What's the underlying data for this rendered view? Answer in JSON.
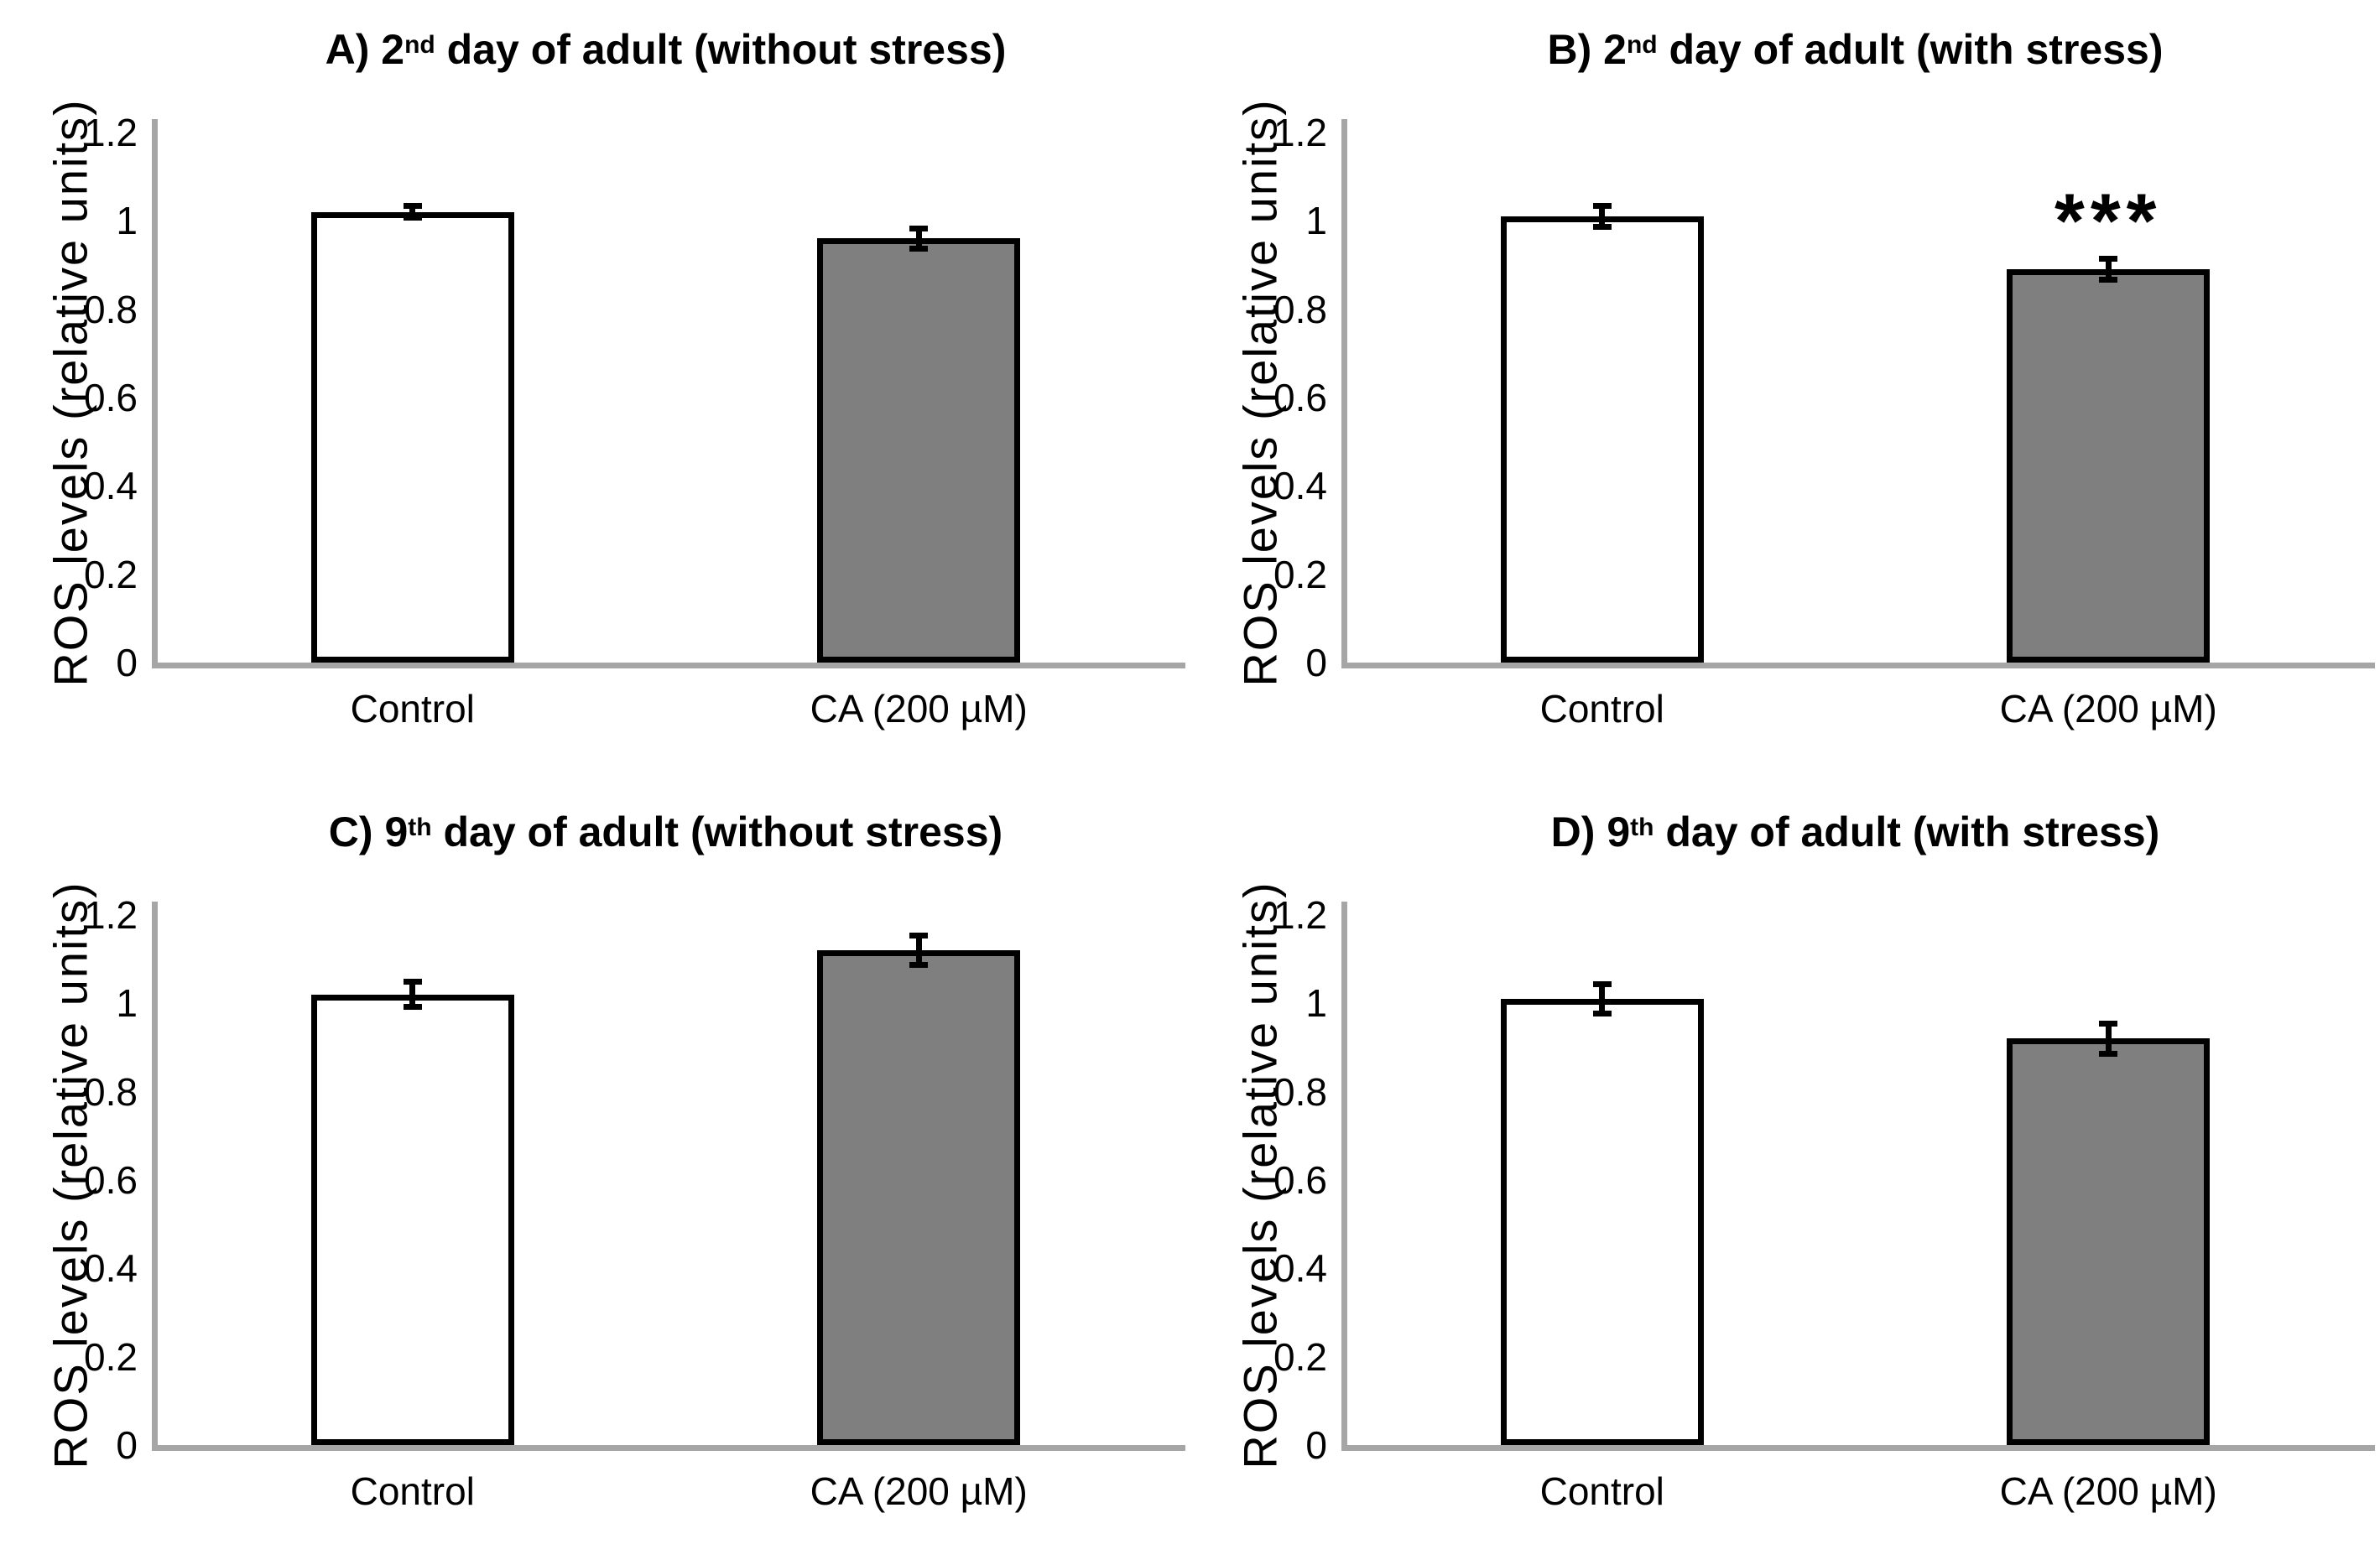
{
  "figure": {
    "ylabel": "ROS levels (relative units)",
    "yticks": [
      {
        "label": "0",
        "value": 0
      },
      {
        "label": "0.2",
        "value": 0.2
      },
      {
        "label": "0.4",
        "value": 0.4
      },
      {
        "label": "0.6",
        "value": 0.6
      },
      {
        "label": "0.8",
        "value": 0.8
      },
      {
        "label": "1",
        "value": 1
      },
      {
        "label": "1.2",
        "value": 1.2
      }
    ],
    "colors": {
      "bar_white": "#FFFFFF",
      "bar_gray": "#7F7F7F",
      "bar_border": "#000000",
      "axis_gray": "#A6A6A6"
    }
  },
  "chart_data": [
    {
      "type": "bar",
      "panel": "A",
      "title_prefix": "A) 2",
      "title_sup": "nd",
      "title_rest": " day of adult (without stress)",
      "ylabel": "ROS levels (relative units)",
      "ylim": [
        0,
        1.2
      ],
      "categories": [
        "Control",
        "CA (200 µM)"
      ],
      "series": [
        {
          "name": "Control",
          "value": 1.02,
          "error": 0.02,
          "fill": "#FFFFFF"
        },
        {
          "name": "CA (200 µM)",
          "value": 0.96,
          "error": 0.03,
          "fill": "#7F7F7F"
        }
      ]
    },
    {
      "type": "bar",
      "panel": "B",
      "title_prefix": "B) 2",
      "title_sup": "nd",
      "title_rest": " day of adult (with stress)",
      "ylabel": "ROS levels (relative units)",
      "ylim": [
        0,
        1.2
      ],
      "categories": [
        "Control",
        "CA (200 µM)"
      ],
      "series": [
        {
          "name": "Control",
          "value": 1.01,
          "error": 0.03,
          "fill": "#FFFFFF"
        },
        {
          "name": "CA (200 µM)",
          "value": 0.89,
          "error": 0.03,
          "fill": "#7F7F7F",
          "significance": "***"
        }
      ]
    },
    {
      "type": "bar",
      "panel": "C",
      "title_prefix": "C) 9",
      "title_sup": "th",
      "title_rest": " day of adult (without stress)",
      "ylabel": "ROS levels (relative units)",
      "ylim": [
        0,
        1.2
      ],
      "categories": [
        "Control",
        "CA (200 µM)"
      ],
      "series": [
        {
          "name": "Control",
          "value": 1.02,
          "error": 0.035,
          "fill": "#FFFFFF"
        },
        {
          "name": "CA (200 µM)",
          "value": 1.12,
          "error": 0.04,
          "fill": "#7F7F7F"
        }
      ]
    },
    {
      "type": "bar",
      "panel": "D",
      "title_prefix": "D) 9",
      "title_sup": "th",
      "title_rest": " day of adult (with stress)",
      "ylabel": "ROS levels (relative units)",
      "ylim": [
        0,
        1.2
      ],
      "categories": [
        "Control",
        "CA (200 µM)"
      ],
      "series": [
        {
          "name": "Control",
          "value": 1.01,
          "error": 0.04,
          "fill": "#FFFFFF"
        },
        {
          "name": "CA (200 µM)",
          "value": 0.92,
          "error": 0.04,
          "fill": "#7F7F7F"
        }
      ]
    }
  ]
}
